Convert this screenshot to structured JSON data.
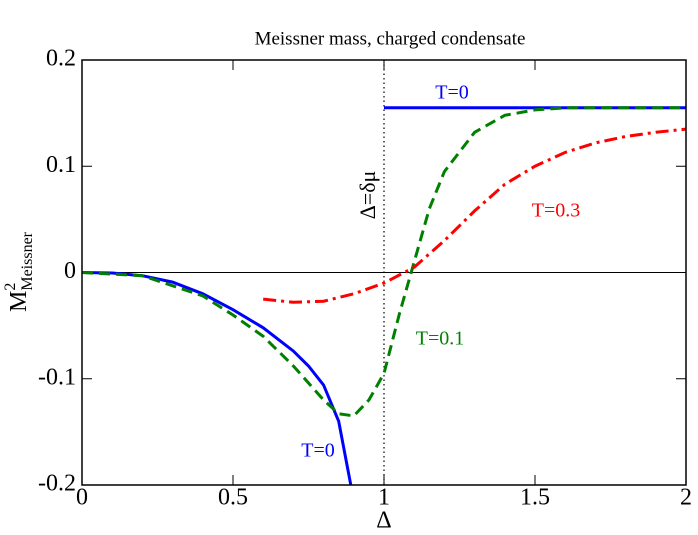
{
  "chart_data": {
    "type": "line",
    "title": "Meissner mass, charged condensate",
    "xlabel": "Δ",
    "ylabel": {
      "main": "M",
      "sup": "2",
      "sub": "Meissner"
    },
    "xlim": [
      0,
      2
    ],
    "ylim": [
      -0.2,
      0.2
    ],
    "xticks": [
      0,
      0.5,
      1,
      1.5,
      2
    ],
    "yticks": [
      -0.2,
      -0.1,
      0,
      0.1,
      0.2
    ],
    "hline": 0,
    "vline": 1,
    "series": [
      {
        "name": "T=0",
        "color": "#0000ff",
        "style": "solid",
        "x": [
          0,
          0.1,
          0.2,
          0.3,
          0.4,
          0.5,
          0.6,
          0.7,
          0.75,
          0.8,
          0.85,
          0.89,
          0.95,
          1,
          2
        ],
        "values": [
          0,
          -0.0005,
          -0.003,
          -0.009,
          -0.02,
          -0.035,
          -0.052,
          -0.074,
          -0.088,
          -0.106,
          -0.14,
          -0.2,
          null,
          0.155,
          0.155
        ]
      },
      {
        "name": "T=0.1",
        "color": "#008000",
        "style": "dashed",
        "x": [
          0,
          0.2,
          0.4,
          0.5,
          0.6,
          0.7,
          0.8,
          0.85,
          0.9,
          0.95,
          1,
          1.05,
          1.1,
          1.15,
          1.2,
          1.3,
          1.4,
          1.5,
          1.6,
          2
        ],
        "values": [
          0,
          -0.003,
          -0.022,
          -0.04,
          -0.06,
          -0.088,
          -0.12,
          -0.133,
          -0.135,
          -0.12,
          -0.095,
          -0.04,
          0.01,
          0.06,
          0.095,
          0.132,
          0.148,
          0.153,
          0.155,
          0.155
        ]
      },
      {
        "name": "T=0.3",
        "color": "#ff0000",
        "style": "dashdot",
        "x": [
          0.6,
          0.7,
          0.8,
          0.9,
          1,
          1.1,
          1.2,
          1.3,
          1.4,
          1.5,
          1.6,
          1.7,
          1.8,
          1.9,
          2
        ],
        "values": [
          -0.025,
          -0.028,
          -0.027,
          -0.02,
          -0.01,
          0.005,
          0.03,
          0.058,
          0.083,
          0.1,
          0.113,
          0.122,
          0.128,
          0.132,
          0.135
        ]
      }
    ],
    "annotations": [
      "T=0",
      "T=0",
      "T=0.1",
      "T=0.3",
      "Δ=δμ"
    ]
  }
}
